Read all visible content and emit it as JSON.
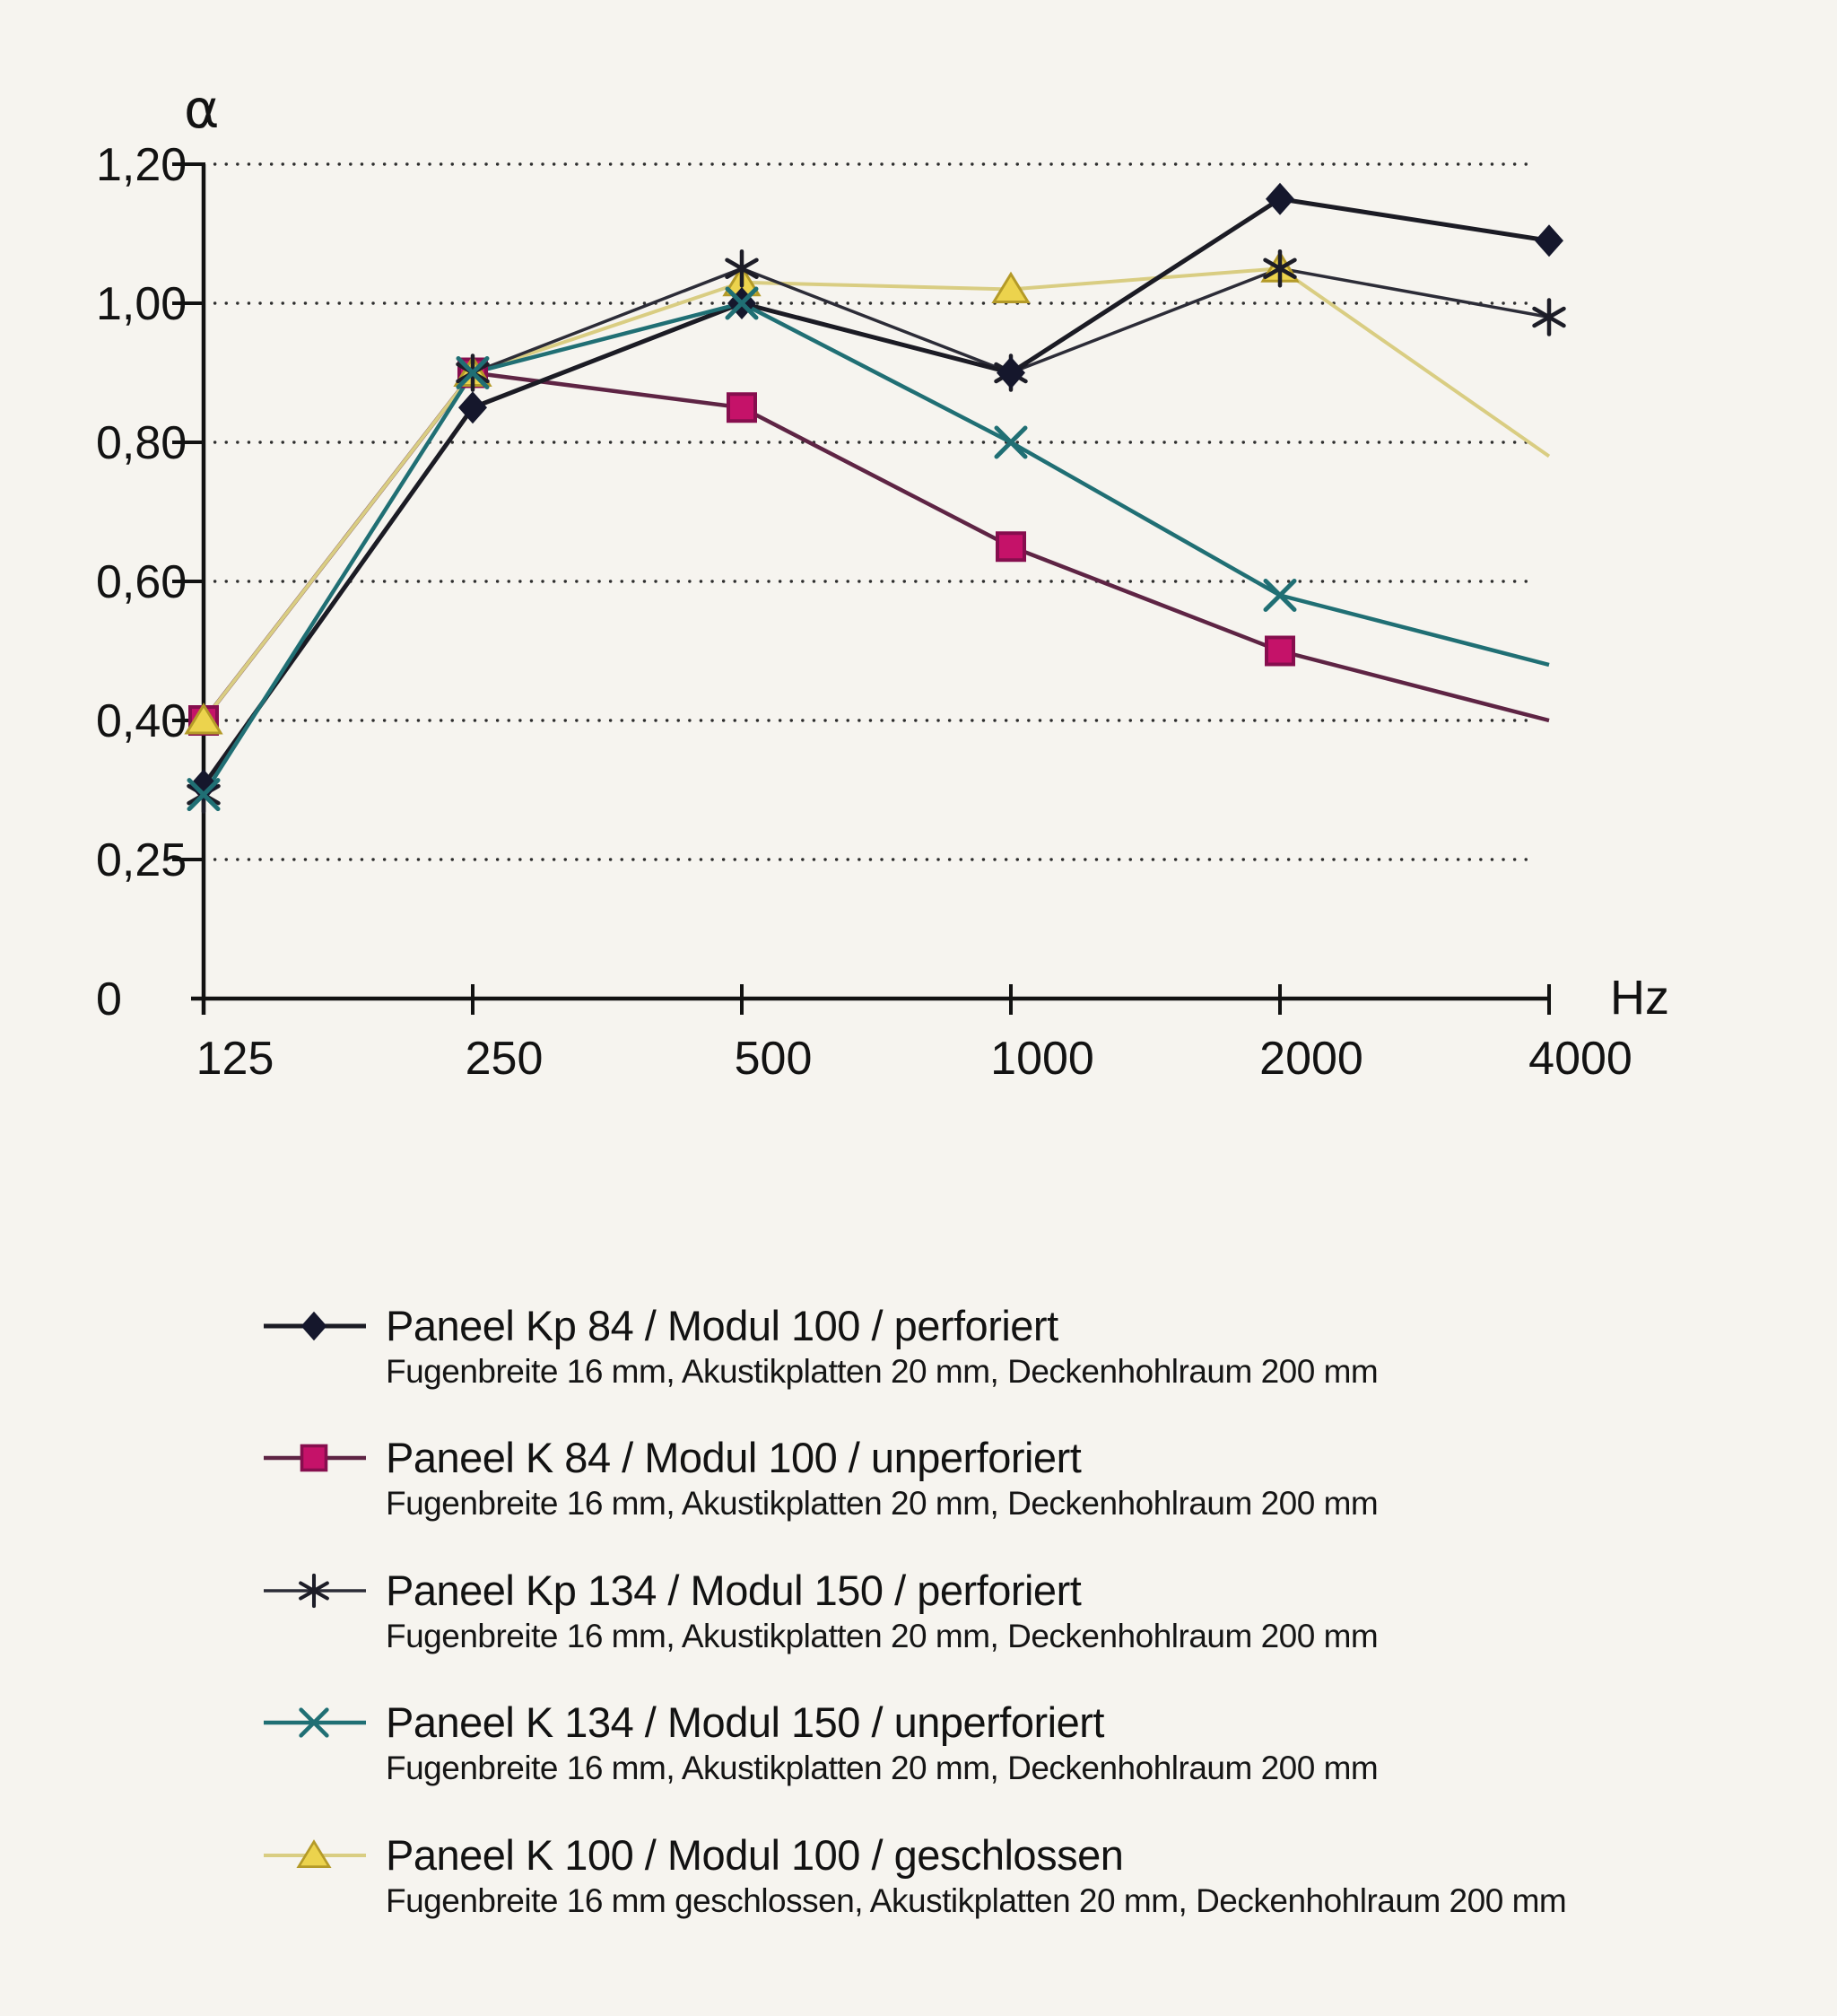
{
  "page": {
    "background_color": "#f6f4ef",
    "kind": "scanned sound-absorption chart"
  },
  "chart_data": {
    "type": "line",
    "title": "",
    "x_axis": {
      "label": "Hz",
      "scale": "octave-log",
      "ticks": [
        125,
        250,
        500,
        1000,
        2000,
        4000
      ],
      "tick_labels": [
        "125",
        "250",
        "500",
        "1000",
        "2000",
        "4000"
      ]
    },
    "y_axis": {
      "label": "α",
      "ticks": [
        0,
        0.25,
        0.4,
        0.6,
        0.8,
        1.0,
        1.2
      ],
      "tick_labels": [
        "0",
        "0,25",
        "0,40",
        "0,60",
        "0,80",
        "1,00",
        "1,20"
      ],
      "spacing": "equal-per-tick",
      "grid": "dotted-horizontal"
    },
    "series": [
      {
        "id": "kp84",
        "name": "Paneel Kp 84 / Modul 100 / perforiert",
        "marker": "diamond",
        "values": [
          0.33,
          0.85,
          1.0,
          0.9,
          1.15,
          1.09
        ],
        "line_color": "#1b1b24",
        "line_width": 5,
        "marker_color": "#15172c",
        "marker_border": "#15172c",
        "end_marker": true
      },
      {
        "id": "k84",
        "name": "Paneel K 84 / Modul 100 / unperforiert",
        "marker": "square",
        "values": [
          0.4,
          0.9,
          0.85,
          0.65,
          0.5,
          0.4
        ],
        "line_color": "#5e2444",
        "line_width": 4.5,
        "marker_color": "#c51269",
        "marker_border": "#860e4e",
        "end_marker": false
      },
      {
        "id": "kp134",
        "name": "Paneel Kp 134 / Modul 150 / perforiert",
        "marker": "asterisk",
        "values": [
          0.32,
          0.9,
          1.05,
          0.9,
          1.05,
          0.98
        ],
        "line_color": "#2c2c37",
        "line_width": 3.5,
        "marker_color": "#1d1d27",
        "marker_border": "#1d1d27",
        "end_marker": true
      },
      {
        "id": "k134",
        "name": "Paneel K 134 / Modul 150 / unperforiert",
        "marker": "x",
        "values": [
          0.32,
          0.9,
          1.0,
          0.8,
          0.58,
          0.48
        ],
        "line_color": "#206f74",
        "line_width": 4.5,
        "marker_color": "#206f74",
        "marker_border": "#206f74",
        "end_marker": false
      },
      {
        "id": "k100",
        "name": "Paneel K 100 / Modul 100 / geschlossen",
        "marker": "triangle",
        "values": [
          0.4,
          0.9,
          1.03,
          1.02,
          1.05,
          0.78
        ],
        "line_color": "#d9cd82",
        "line_width": 4,
        "marker_color": "#ecd34d",
        "marker_border": "#b49a28",
        "end_marker": false
      }
    ],
    "render_order": [
      "k84",
      "k100",
      "kp134",
      "kp84",
      "k134"
    ]
  },
  "legend": {
    "items": [
      {
        "series": "kp84",
        "title": "Paneel Kp 84 / Modul 100 / perforiert",
        "subtitle": "Fugenbreite 16 mm, Akustikplatten 20 mm, Deckenhohlraum 200 mm"
      },
      {
        "series": "k84",
        "title": "Paneel K 84 / Modul 100 / unperforiert",
        "subtitle": "Fugenbreite 16 mm, Akustikplatten 20 mm, Deckenhohlraum 200 mm"
      },
      {
        "series": "kp134",
        "title": "Paneel Kp 134 / Modul 150 / perforiert",
        "subtitle": "Fugenbreite 16 mm, Akustikplatten 20 mm, Deckenhohlraum 200 mm"
      },
      {
        "series": "k134",
        "title": "Paneel K 134 / Modul 150 / unperforiert",
        "subtitle": "Fugenbreite 16 mm, Akustikplatten 20 mm, Deckenhohlraum 200 mm"
      },
      {
        "series": "k100",
        "title": "Paneel K 100 / Modul 100 / geschlossen",
        "subtitle": "Fugenbreite 16 mm geschlossen, Akustikplatten 20 mm, Deckenhohlraum 200 mm"
      }
    ]
  }
}
